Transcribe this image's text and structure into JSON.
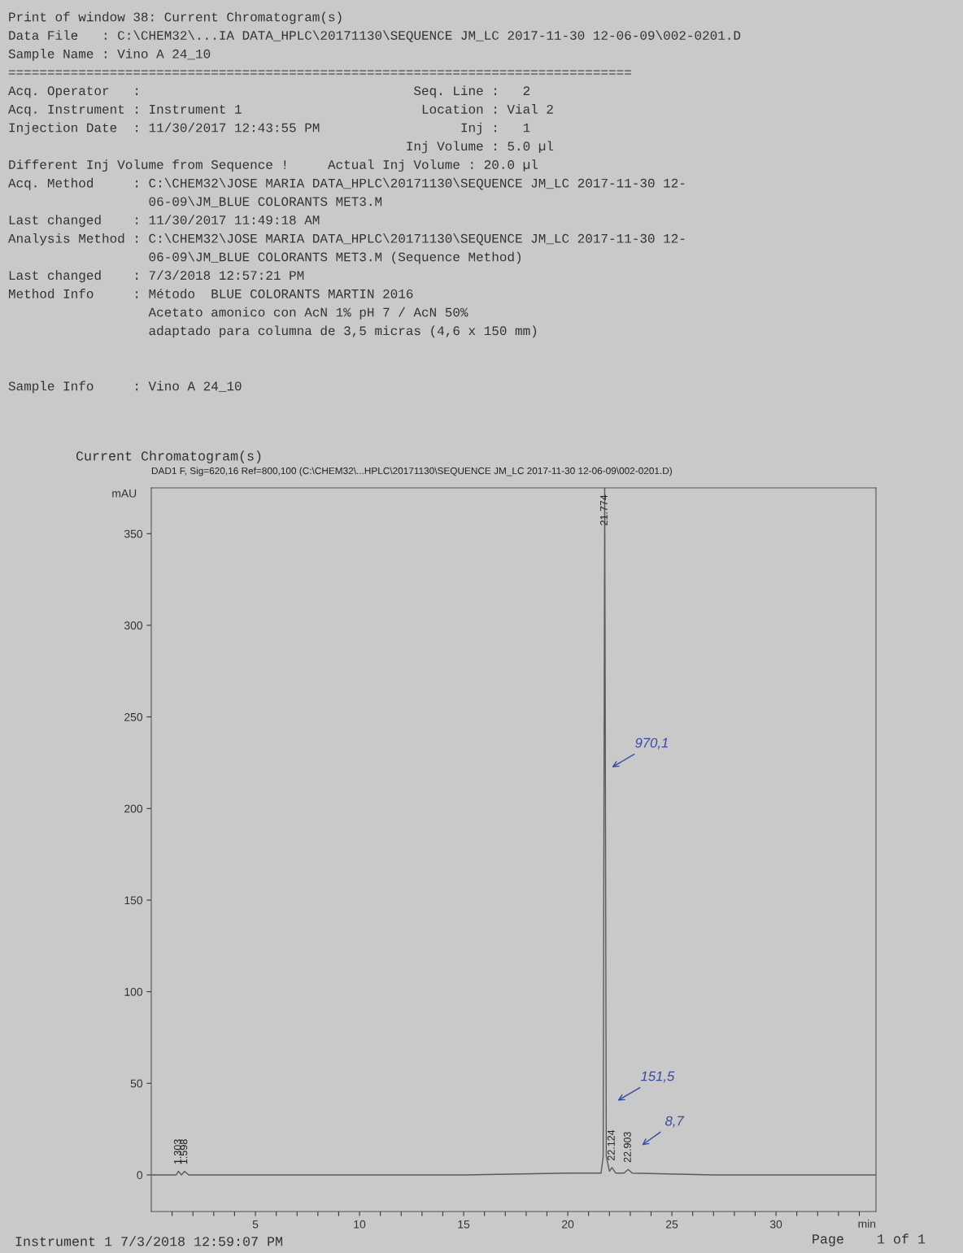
{
  "chart_data": {
    "type": "line",
    "title": "Current Chromatogram(s)",
    "subtitle": "DAD1 F, Sig=620,16 Ref=800,100 (C:\\CHEM32\\...HPLC\\20171130\\SEQUENCE JM_LC 2017-11-30 12-06-09\\002-0201.D)",
    "ylabel": "mAU",
    "xlabel": "min",
    "x": [
      0,
      1.2,
      1.303,
      1.45,
      1.598,
      1.8,
      6,
      10,
      15,
      20,
      21.6,
      21.7,
      21.774,
      21.85,
      22.0,
      22.124,
      22.3,
      22.7,
      22.903,
      23.1,
      27,
      34.8
    ],
    "series": [
      {
        "color": "#5a5a5a",
        "values": [
          0,
          0,
          2,
          0,
          2,
          0,
          0,
          0,
          0,
          1,
          1,
          10,
          375,
          10,
          2,
          4,
          1,
          1,
          3,
          1,
          0,
          0
        ]
      }
    ],
    "xlim": [
      0,
      34.8
    ],
    "ylim": [
      -20,
      375
    ],
    "xticks": [
      {
        "value": 1,
        "label": null
      },
      {
        "value": 2,
        "label": null
      },
      {
        "value": 3,
        "label": null
      },
      {
        "value": 4,
        "label": null
      },
      5,
      {
        "value": 6,
        "label": null
      },
      {
        "value": 7,
        "label": null
      },
      {
        "value": 8,
        "label": null
      },
      {
        "value": 9,
        "label": null
      },
      10,
      {
        "value": 11,
        "label": null
      },
      {
        "value": 12,
        "label": null
      },
      {
        "value": 13,
        "label": null
      },
      {
        "value": 14,
        "label": null
      },
      15,
      {
        "value": 16,
        "label": null
      },
      {
        "value": 17,
        "label": null
      },
      {
        "value": 18,
        "label": null
      },
      {
        "value": 19,
        "label": null
      },
      20,
      {
        "value": 21,
        "label": null
      },
      {
        "value": 22,
        "label": null
      },
      {
        "value": 23,
        "label": null
      },
      {
        "value": 24,
        "label": null
      },
      25,
      {
        "value": 26,
        "label": null
      },
      {
        "value": 27,
        "label": null
      },
      {
        "value": 28,
        "label": null
      },
      {
        "value": 29,
        "label": null
      },
      30,
      {
        "value": 31,
        "label": null
      },
      {
        "value": 32,
        "label": null
      },
      {
        "value": 33,
        "label": null
      },
      {
        "value": 34,
        "label": null
      }
    ],
    "yticks": [
      0,
      50,
      100,
      150,
      200,
      250,
      300,
      350
    ],
    "marker": "none",
    "line_style": "solid",
    "annotations": [
      "Print of window 38: Current Chromatogram(s)",
      "Data File   : C:\\CHEM32\\...IA DATA_HPLC\\20171130\\SEQUENCE JM_LC 2017-11-30 12-06-09\\002-0201.D",
      "Sample Name : Vino A 24_10",
      "================================================================================",
      "Acq. Operator   :                                   Seq. Line :   2",
      "Acq. Instrument : Instrument 1                       Location : Vial 2",
      "Injection Date  : 11/30/2017 12:43:55 PM                  Inj :   1",
      "                                                   Inj Volume : 5.0 µl",
      "Different Inj Volume from Sequence !     Actual Inj Volume : 20.0 µl",
      "Acq. Method     : C:\\CHEM32\\JOSE MARIA DATA_HPLC\\20171130\\SEQUENCE JM_LC 2017-11-30 12-",
      "                  06-09\\JM_BLUE COLORANTS MET3.M",
      "Last changed    : 11/30/2017 11:49:18 AM",
      "Analysis Method : C:\\CHEM32\\JOSE MARIA DATA_HPLC\\20171130\\SEQUENCE JM_LC 2017-11-30 12-",
      "                  06-09\\JM_BLUE COLORANTS MET3.M (Sequence Method)",
      "Last changed    : 7/3/2018 12:57:21 PM",
      "Method Info     : Método  BLUE COLORANTS MARTIN 2016",
      "                  Acetato amonico con AcN 1% pH 7 / AcN 50%",
      "                  adaptado para columna de 3,5 micras (4,6 x 150 mm)",
      "Sample Info     : Vino A 24_10",
      {
        "text": "1.303",
        "x": 1.303,
        "y": 2
      },
      {
        "text": "1.598",
        "x": 1.598,
        "y": 2
      },
      {
        "text": "21.774",
        "x": 21.774,
        "y": 375
      },
      {
        "text": "22.124",
        "x": 22.124,
        "y": 4
      },
      {
        "text": "22.903",
        "x": 22.903,
        "y": 3
      },
      "970,1",
      "151,5",
      "8,7",
      "Instrument 1 7/3/2018 12:59:07 PM",
      "Page    1 of 1"
    ]
  }
}
